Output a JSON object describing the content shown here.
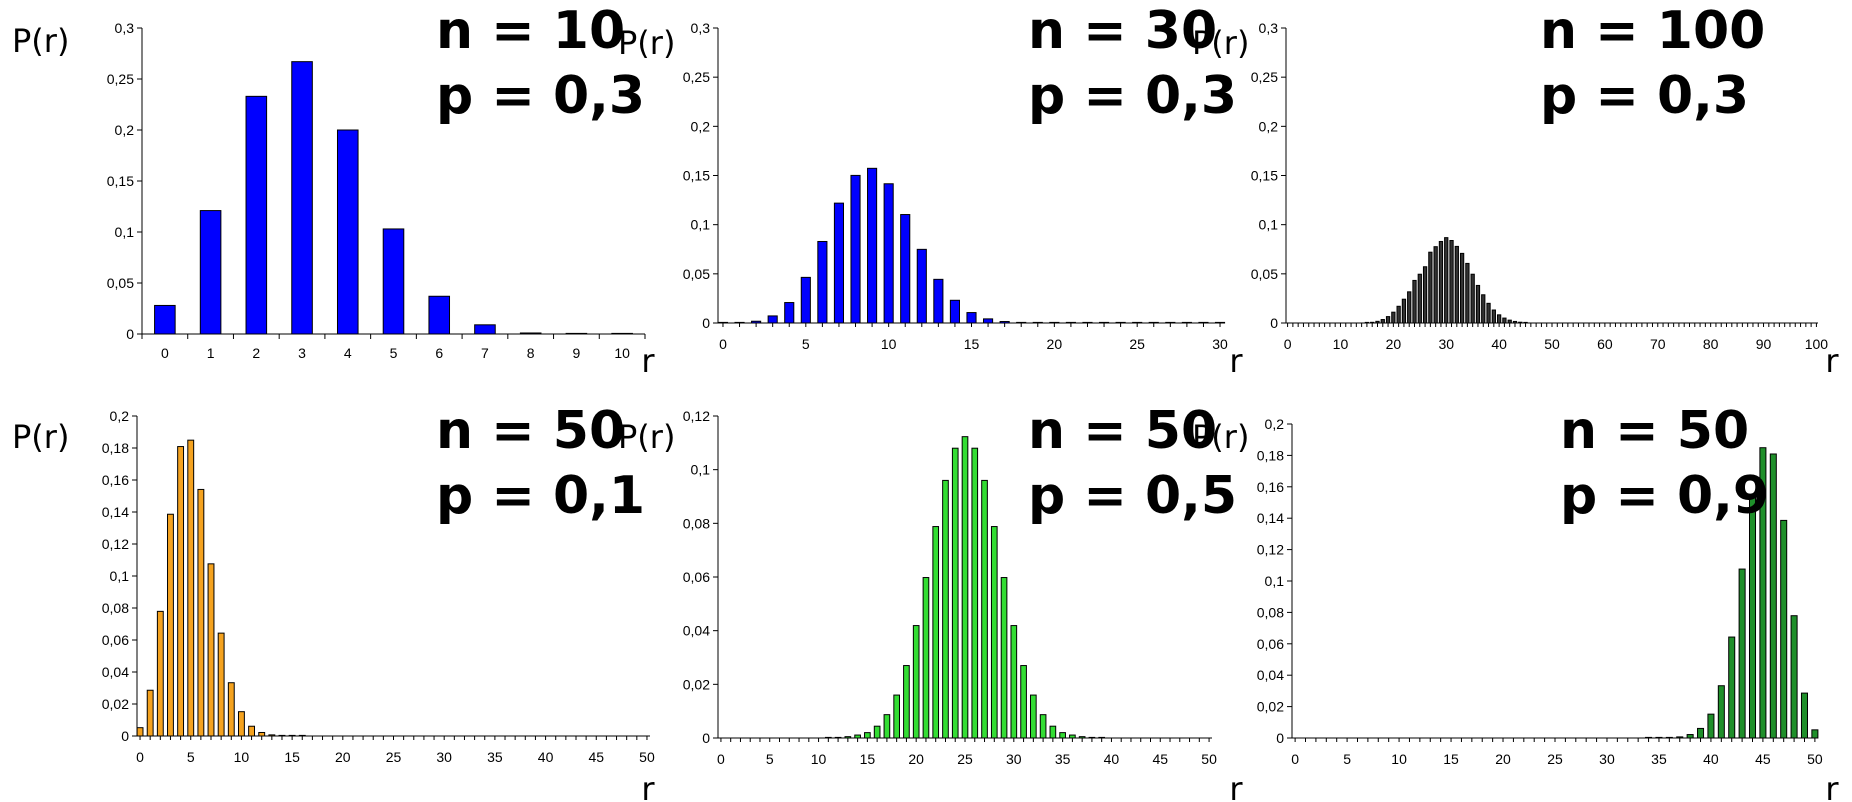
{
  "chart_data": [
    {
      "type": "bar",
      "annotation_n": "n = 10",
      "annotation_p": "p = 0,3",
      "ylabel": "P(r)",
      "xlabel": "r",
      "n": 10,
      "p": 0.3,
      "color": "#0000ff",
      "xlim": [
        0,
        10
      ],
      "ylim": [
        0,
        0.3
      ],
      "x_ticks": [
        "0",
        "1",
        "2",
        "3",
        "4",
        "5",
        "6",
        "7",
        "8",
        "9",
        "10"
      ],
      "y_ticks": [
        "0",
        "0,05",
        "0,1",
        "0,15",
        "0,2",
        "0,25",
        "0,3"
      ],
      "grid": false,
      "x": [
        0,
        1,
        2,
        3,
        4,
        5,
        6,
        7,
        8,
        9,
        10
      ],
      "values": [
        0.028,
        0.121,
        0.233,
        0.267,
        0.2,
        0.103,
        0.037,
        0.009,
        0.001,
        0.0001,
        0.0
      ]
    },
    {
      "type": "bar",
      "annotation_n": "n = 30",
      "annotation_p": "p = 0,3",
      "ylabel": "P(r)",
      "xlabel": "r",
      "n": 30,
      "p": 0.3,
      "color": "#0000ff",
      "xlim": [
        0,
        30
      ],
      "ylim": [
        0,
        0.3
      ],
      "x_ticks": [
        "0",
        "5",
        "10",
        "15",
        "20",
        "25",
        "30"
      ],
      "y_ticks": [
        "0",
        "0,05",
        "0,1",
        "0,15",
        "0,2",
        "0,25",
        "0,3"
      ],
      "grid": false,
      "x": [
        0,
        1,
        2,
        3,
        4,
        5,
        6,
        7,
        8,
        9,
        10,
        11,
        12,
        13,
        14,
        15,
        16,
        17,
        18,
        19,
        20,
        21,
        22,
        23,
        24,
        25,
        26,
        27,
        28,
        29,
        30
      ],
      "values": [
        0.0,
        0.0003,
        0.0018,
        0.0072,
        0.0208,
        0.0464,
        0.0829,
        0.1219,
        0.1501,
        0.1573,
        0.1416,
        0.1103,
        0.0749,
        0.0444,
        0.0231,
        0.0106,
        0.0042,
        0.0015,
        0.0005,
        0.0001,
        0.0,
        0.0,
        0.0,
        0.0,
        0.0,
        0.0,
        0.0,
        0.0,
        0.0,
        0.0,
        0.0
      ]
    },
    {
      "type": "bar",
      "annotation_n": "n = 100",
      "annotation_p": "p = 0,3",
      "ylabel": "P(r)",
      "xlabel": "r",
      "n": 100,
      "p": 0.3,
      "color": "#333333",
      "xlim": [
        0,
        100
      ],
      "ylim": [
        0,
        0.3
      ],
      "x_ticks": [
        "0",
        "10",
        "20",
        "30",
        "40",
        "50",
        "60",
        "70",
        "80",
        "90",
        "100"
      ],
      "y_ticks": [
        "0",
        "0,05",
        "0,1",
        "0,15",
        "0,2",
        "0,25",
        "0,3"
      ],
      "grid": false,
      "x": [
        15,
        16,
        17,
        18,
        19,
        20,
        21,
        22,
        23,
        24,
        25,
        26,
        27,
        28,
        29,
        30,
        31,
        32,
        33,
        34,
        35,
        36,
        37,
        38,
        39,
        40,
        41,
        42,
        43,
        44,
        45
      ],
      "values": [
        0.0003,
        0.0007,
        0.0017,
        0.0035,
        0.0065,
        0.011,
        0.017,
        0.0242,
        0.0317,
        0.0433,
        0.0496,
        0.0572,
        0.072,
        0.0776,
        0.0829,
        0.0868,
        0.0839,
        0.0779,
        0.0708,
        0.0606,
        0.0496,
        0.0382,
        0.0287,
        0.02,
        0.0132,
        0.0083,
        0.005,
        0.0029,
        0.0016,
        0.0008,
        0.0004
      ]
    },
    {
      "type": "bar",
      "annotation_n": "n = 50",
      "annotation_p": "p = 0,1",
      "ylabel": "P(r)",
      "xlabel": "r",
      "n": 50,
      "p": 0.1,
      "color": "#f4a21f",
      "xlim": [
        0,
        50
      ],
      "ylim": [
        0,
        0.2
      ],
      "x_ticks": [
        "0",
        "5",
        "10",
        "15",
        "20",
        "25",
        "30",
        "35",
        "40",
        "45",
        "50"
      ],
      "y_ticks": [
        "0",
        "0,02",
        "0,04",
        "0,06",
        "0,08",
        "0,1",
        "0,12",
        "0,14",
        "0,16",
        "0,18",
        "0,2"
      ],
      "grid": false,
      "x": [
        0,
        1,
        2,
        3,
        4,
        5,
        6,
        7,
        8,
        9,
        10,
        11,
        12,
        13,
        14,
        15,
        16
      ],
      "values": [
        0.0052,
        0.0286,
        0.0779,
        0.1386,
        0.1809,
        0.1849,
        0.1541,
        0.1076,
        0.0643,
        0.0333,
        0.0152,
        0.0061,
        0.0022,
        0.0007,
        0.0002,
        0.0001,
        0.0
      ]
    },
    {
      "type": "bar",
      "annotation_n": "n = 50",
      "annotation_p": "p = 0,5",
      "ylabel": "P(r)",
      "xlabel": "r",
      "n": 50,
      "p": 0.5,
      "color": "#33dd33",
      "xlim": [
        0,
        50
      ],
      "ylim": [
        0,
        0.12
      ],
      "x_ticks": [
        "0",
        "5",
        "10",
        "15",
        "20",
        "25",
        "30",
        "35",
        "40",
        "45",
        "50"
      ],
      "y_ticks": [
        "0",
        "0,02",
        "0,04",
        "0,06",
        "0,08",
        "0,1",
        "0,12"
      ],
      "grid": false,
      "x": [
        11,
        12,
        13,
        14,
        15,
        16,
        17,
        18,
        19,
        20,
        21,
        22,
        23,
        24,
        25,
        26,
        27,
        28,
        29,
        30,
        31,
        32,
        33,
        34,
        35,
        36,
        37,
        38,
        39
      ],
      "values": [
        0.0001,
        0.0002,
        0.0005,
        0.0011,
        0.002,
        0.0044,
        0.0087,
        0.016,
        0.027,
        0.0419,
        0.0598,
        0.0788,
        0.096,
        0.108,
        0.1123,
        0.108,
        0.096,
        0.0788,
        0.0598,
        0.0419,
        0.027,
        0.016,
        0.0087,
        0.0044,
        0.002,
        0.0011,
        0.0005,
        0.0002,
        0.0001
      ]
    },
    {
      "type": "bar",
      "annotation_n": "n = 50",
      "annotation_p": "p = 0,9",
      "ylabel": "P(r)",
      "xlabel": "r",
      "n": 50,
      "p": 0.9,
      "color": "#1f8f2a",
      "xlim": [
        0,
        50
      ],
      "ylim": [
        0,
        0.2
      ],
      "x_ticks": [
        "0",
        "5",
        "10",
        "15",
        "20",
        "25",
        "30",
        "35",
        "40",
        "45",
        "50"
      ],
      "y_ticks": [
        "0",
        "0,02",
        "0,04",
        "0,06",
        "0,08",
        "0,1",
        "0,12",
        "0,14",
        "0,16",
        "0,18",
        "0,2"
      ],
      "grid": false,
      "x": [
        34,
        35,
        36,
        37,
        38,
        39,
        40,
        41,
        42,
        43,
        44,
        45,
        46,
        47,
        48,
        49,
        50
      ],
      "values": [
        0.0,
        0.0001,
        0.0002,
        0.0007,
        0.0022,
        0.0061,
        0.0152,
        0.0333,
        0.0643,
        0.1076,
        0.1541,
        0.1849,
        0.1809,
        0.1386,
        0.0779,
        0.0286,
        0.0052
      ]
    }
  ]
}
